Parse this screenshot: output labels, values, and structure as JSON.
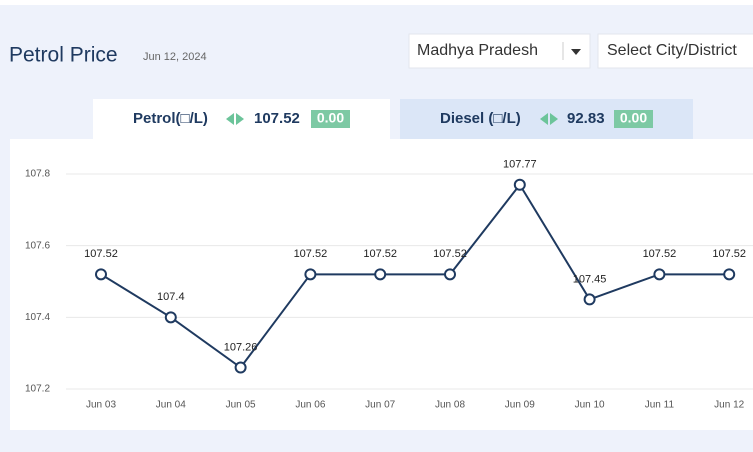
{
  "header": {
    "title": "Petrol Price",
    "date": "Jun 12, 2024"
  },
  "selects": {
    "state": "Madhya Pradesh",
    "city": "Select City/District"
  },
  "tabs": [
    {
      "label": "Petrol(□/L)",
      "price": 107.52,
      "change": "0.00"
    },
    {
      "label": "Diesel (□/L)",
      "price": 92.83,
      "change": "0.00"
    }
  ],
  "chart_data": {
    "type": "line",
    "categories": [
      "Jun 03",
      "Jun 04",
      "Jun 05",
      "Jun 06",
      "Jun 07",
      "Jun 08",
      "Jun 09",
      "Jun 10",
      "Jun 11",
      "Jun 12"
    ],
    "values": [
      107.52,
      107.4,
      107.26,
      107.52,
      107.52,
      107.52,
      107.77,
      107.45,
      107.52,
      107.52
    ],
    "color": "#1f3a60",
    "ylim": [
      107.2,
      107.8
    ],
    "yticks": [
      107.2,
      107.4,
      107.6,
      107.8
    ],
    "grid": true
  }
}
